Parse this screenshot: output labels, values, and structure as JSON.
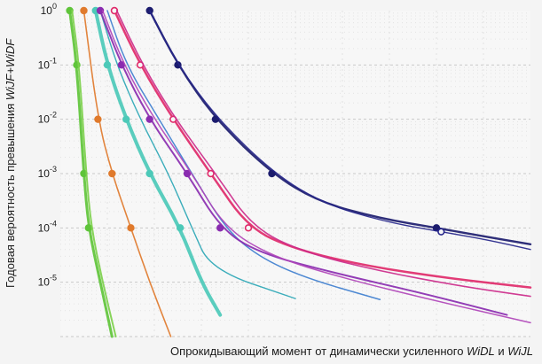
{
  "chart_data": {
    "type": "line",
    "ylabel_parts": [
      {
        "text": "Годовая вероятность превышения ",
        "italic": false
      },
      {
        "text": "WiJF+WiDF",
        "italic": true
      }
    ],
    "xlabel_parts": [
      {
        "text": "Опрокидывающий момент от динамически усиленного ",
        "italic": false
      },
      {
        "text": "WiDL",
        "italic": true
      },
      {
        "text": " и ",
        "italic": false
      },
      {
        "text": "WiJL",
        "italic": true
      }
    ],
    "y_scale": "log",
    "ylim": [
      1e-06,
      1
    ],
    "xlim": [
      0,
      1
    ],
    "y_ticks": [
      {
        "base": "10",
        "exp": "0",
        "value": 1
      },
      {
        "base": "10",
        "exp": "-1",
        "value": 0.1
      },
      {
        "base": "10",
        "exp": "-2",
        "value": 0.01
      },
      {
        "base": "10",
        "exp": "-3",
        "value": 0.001
      },
      {
        "base": "10",
        "exp": "-4",
        "value": 0.0001
      },
      {
        "base": "10",
        "exp": "-5",
        "value": 1e-05
      }
    ],
    "grid": true,
    "series": [
      {
        "color": "#5fc43a",
        "width": 3,
        "markers": "filled",
        "x": [
          0.02,
          0.035,
          0.05,
          0.06,
          0.085,
          0.11
        ],
        "y": [
          1,
          0.1,
          0.001,
          0.0001,
          1e-05,
          1e-06
        ],
        "marker_idx": [
          0,
          1,
          2,
          3
        ]
      },
      {
        "color": "#7dd04c",
        "width": 2,
        "markers": "none",
        "x": [
          0.025,
          0.04,
          0.055,
          0.066,
          0.09,
          0.118
        ],
        "y": [
          1,
          0.1,
          0.001,
          0.0001,
          1e-05,
          1e-06
        ],
        "marker_idx": []
      },
      {
        "color": "#e07a2c",
        "width": 1.6,
        "markers": "filled",
        "x": [
          0.05,
          0.08,
          0.11,
          0.15,
          0.19,
          0.235
        ],
        "y": [
          1,
          0.01,
          0.001,
          0.0001,
          1e-05,
          1e-06
        ],
        "marker_idx": [
          0,
          1,
          2,
          3
        ]
      },
      {
        "color": "#4cc9b8",
        "width": 4,
        "markers": "filled",
        "x": [
          0.075,
          0.1,
          0.14,
          0.19,
          0.255,
          0.3,
          0.34
        ],
        "y": [
          1,
          0.1,
          0.01,
          0.001,
          0.0001,
          1e-05,
          2.5e-06
        ],
        "marker_idx": [
          0,
          1,
          2,
          3,
          4
        ]
      },
      {
        "color": "#2aa6b5",
        "width": 1.4,
        "markers": "none",
        "x": [
          0.085,
          0.12,
          0.17,
          0.23,
          0.28,
          0.32,
          0.5
        ],
        "y": [
          1,
          0.1,
          0.01,
          0.001,
          0.0001,
          1.7e-05,
          5e-06
        ],
        "marker_idx": []
      },
      {
        "color": "#3f7fcf",
        "width": 1.5,
        "markers": "none",
        "x": [
          0.1,
          0.14,
          0.21,
          0.28,
          0.35,
          0.42,
          0.52,
          0.68
        ],
        "y": [
          1,
          0.1,
          0.01,
          0.001,
          0.0001,
          3e-05,
          1.2e-05,
          4.8e-06
        ],
        "marker_idx": []
      },
      {
        "color": "#8a2cb0",
        "width": 2,
        "markers": "filled",
        "x": [
          0.085,
          0.13,
          0.19,
          0.27,
          0.34,
          0.42,
          0.58,
          0.78,
          0.95
        ],
        "y": [
          1,
          0.1,
          0.01,
          0.001,
          0.0001,
          3.5e-05,
          1.5e-05,
          6e-06,
          2.5e-06
        ],
        "marker_idx": [
          0,
          1,
          2,
          3,
          4
        ]
      },
      {
        "color": "#b044b8",
        "width": 1.5,
        "markers": "none",
        "x": [
          0.09,
          0.135,
          0.2,
          0.28,
          0.35,
          0.45,
          0.6,
          0.8,
          1.0
        ],
        "y": [
          1,
          0.1,
          0.01,
          0.001,
          0.0001,
          3e-05,
          1.2e-05,
          4.5e-06,
          1.8e-06
        ],
        "marker_idx": []
      },
      {
        "color": "#e02a6a",
        "width": 2.5,
        "markers": "open",
        "x": [
          0.115,
          0.17,
          0.24,
          0.32,
          0.4,
          0.5,
          0.65,
          0.82,
          1.0
        ],
        "y": [
          1,
          0.1,
          0.01,
          0.001,
          0.0001,
          4e-05,
          2e-05,
          1.2e-05,
          8e-06
        ],
        "marker_idx": [
          0,
          1,
          2,
          3,
          4
        ]
      },
      {
        "color": "#cc2a8a",
        "width": 1.6,
        "markers": "none",
        "x": [
          0.12,
          0.175,
          0.245,
          0.33,
          0.41,
          0.52,
          0.68,
          0.85,
          1.0
        ],
        "y": [
          1,
          0.1,
          0.01,
          0.001,
          0.0001,
          3.5e-05,
          1.6e-05,
          8.5e-06,
          5.5e-06
        ],
        "marker_idx": []
      },
      {
        "color": "#1c1c6e",
        "width": 2.4,
        "markers": "filled",
        "x": [
          0.19,
          0.25,
          0.33,
          0.45,
          0.55,
          0.68,
          0.8,
          0.9,
          1.0
        ],
        "y": [
          1,
          0.1,
          0.01,
          0.001,
          0.0003,
          0.00015,
          0.0001,
          7e-05,
          5e-05
        ],
        "marker_idx": [
          0,
          1,
          2,
          3,
          6
        ]
      },
      {
        "color": "#25258a",
        "width": 1.4,
        "markers": "open",
        "x": [
          0.19,
          0.25,
          0.335,
          0.455,
          0.56,
          0.69,
          0.81,
          0.91,
          1.0
        ],
        "y": [
          1,
          0.1,
          0.01,
          0.001,
          0.00028,
          0.00013,
          8.5e-05,
          6e-05,
          4e-05
        ],
        "marker_idx": [
          6
        ]
      }
    ]
  }
}
